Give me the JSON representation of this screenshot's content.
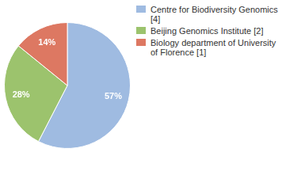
{
  "chart_data": {
    "type": "pie",
    "categories": [
      "Centre for Biodiversity Genomics [4]",
      "Beijing Genomics Institute [2]",
      "Biology department of University of Florence [1]"
    ],
    "values": [
      57,
      28,
      14
    ],
    "value_labels": [
      "57%",
      "28%",
      "14%"
    ],
    "colors": [
      "#9fbbe1",
      "#9cc36d",
      "#dd7862"
    ],
    "data_labels": true,
    "legend": "right"
  }
}
